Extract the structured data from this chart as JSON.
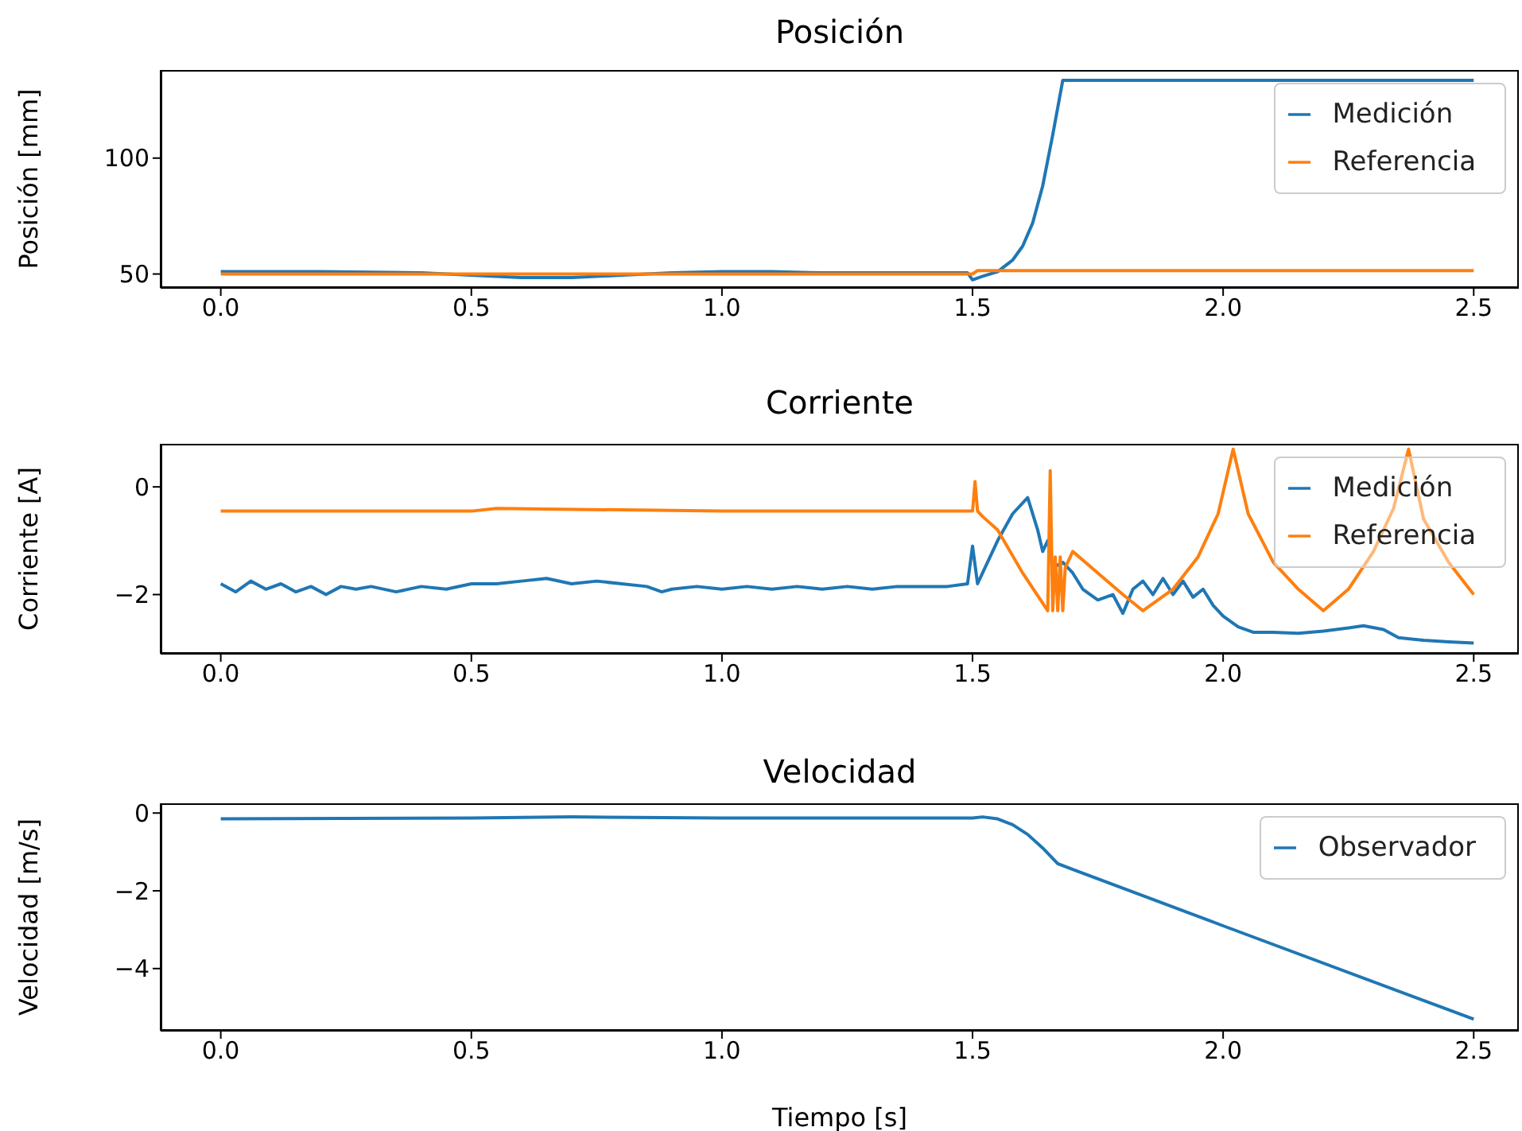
{
  "chart_data": [
    {
      "type": "line",
      "title": "Posición",
      "ylabel": "Posición [mm]",
      "legend": "top right",
      "xlim": [
        -0.12,
        2.59
      ],
      "xticks": [
        {
          "value": 0,
          "label": "0.0"
        },
        {
          "value": 0.5,
          "label": "0.5"
        },
        {
          "value": 1,
          "label": "1.0"
        },
        {
          "value": 1.5,
          "label": "1.5"
        },
        {
          "value": 2,
          "label": "2.0"
        },
        {
          "value": 2.5,
          "label": "2.5"
        }
      ],
      "ylim": [
        44,
        138
      ],
      "yticks": [
        50,
        100
      ],
      "series": [
        {
          "name": "Medición",
          "color": "#1f77b4",
          "x": [
            0,
            0.2,
            0.4,
            0.5,
            0.6,
            0.7,
            0.8,
            0.9,
            1.0,
            1.1,
            1.2,
            1.3,
            1.4,
            1.49,
            1.5,
            1.52,
            1.55,
            1.58,
            1.6,
            1.62,
            1.64,
            1.66,
            1.68,
            2.0,
            2.5
          ],
          "values": [
            51,
            51,
            50.5,
            49.5,
            48.5,
            48.5,
            49.5,
            50.5,
            51,
            51,
            50.5,
            50.5,
            50.5,
            50.5,
            47.5,
            49,
            51,
            56,
            62,
            72,
            88,
            110,
            133.5,
            133.5,
            133.5
          ]
        },
        {
          "name": "Referencia",
          "color": "#ff7f0e",
          "x": [
            0,
            0.5,
            1.0,
            1.5,
            1.51,
            2.0,
            2.5
          ],
          "values": [
            50,
            50,
            50,
            50,
            51.5,
            51.5,
            51.5
          ]
        }
      ]
    },
    {
      "type": "line",
      "title": "Corriente",
      "ylabel": "Corriente [A]",
      "legend": "top right",
      "xlim": [
        -0.12,
        2.59
      ],
      "xticks": [
        {
          "value": 0,
          "label": "0.0"
        },
        {
          "value": 0.5,
          "label": "0.5"
        },
        {
          "value": 1,
          "label": "1.0"
        },
        {
          "value": 1.5,
          "label": "1.5"
        },
        {
          "value": 2,
          "label": "2.0"
        },
        {
          "value": 2.5,
          "label": "2.5"
        }
      ],
      "ylim": [
        -3.1,
        0.8
      ],
      "yticks": [
        -2,
        0
      ],
      "series": [
        {
          "name": "Medición",
          "color": "#1f77b4",
          "x": [
            0,
            0.03,
            0.06,
            0.09,
            0.12,
            0.15,
            0.18,
            0.21,
            0.24,
            0.27,
            0.3,
            0.35,
            0.4,
            0.45,
            0.5,
            0.55,
            0.6,
            0.65,
            0.7,
            0.75,
            0.8,
            0.85,
            0.88,
            0.9,
            0.95,
            1.0,
            1.05,
            1.1,
            1.15,
            1.2,
            1.25,
            1.3,
            1.35,
            1.4,
            1.45,
            1.49,
            1.5,
            1.51,
            1.52,
            1.55,
            1.58,
            1.61,
            1.63,
            1.64,
            1.65,
            1.66,
            1.68,
            1.7,
            1.72,
            1.75,
            1.78,
            1.8,
            1.82,
            1.84,
            1.86,
            1.88,
            1.9,
            1.92,
            1.94,
            1.96,
            1.98,
            2.0,
            2.03,
            2.06,
            2.1,
            2.15,
            2.2,
            2.25,
            2.28,
            2.32,
            2.35,
            2.4,
            2.45,
            2.5
          ],
          "values": [
            -1.8,
            -1.95,
            -1.75,
            -1.9,
            -1.8,
            -1.95,
            -1.85,
            -2.0,
            -1.85,
            -1.9,
            -1.85,
            -1.95,
            -1.85,
            -1.9,
            -1.8,
            -1.8,
            -1.75,
            -1.7,
            -1.8,
            -1.75,
            -1.8,
            -1.85,
            -1.95,
            -1.9,
            -1.85,
            -1.9,
            -1.85,
            -1.9,
            -1.85,
            -1.9,
            -1.85,
            -1.9,
            -1.85,
            -1.85,
            -1.85,
            -1.8,
            -1.1,
            -1.8,
            -1.6,
            -1.0,
            -0.5,
            -0.2,
            -0.8,
            -1.2,
            -1.0,
            -1.5,
            -1.4,
            -1.6,
            -1.9,
            -2.1,
            -2.0,
            -2.35,
            -1.9,
            -1.75,
            -2.0,
            -1.7,
            -2.0,
            -1.75,
            -2.05,
            -1.9,
            -2.2,
            -2.4,
            -2.6,
            -2.7,
            -2.7,
            -2.72,
            -2.68,
            -2.62,
            -2.58,
            -2.65,
            -2.8,
            -2.85,
            -2.88,
            -2.9
          ]
        },
        {
          "name": "Referencia",
          "color": "#ff7f0e",
          "x": [
            0,
            0.5,
            0.55,
            1.0,
            1.5,
            1.505,
            1.51,
            1.52,
            1.55,
            1.6,
            1.65,
            1.655,
            1.66,
            1.665,
            1.67,
            1.675,
            1.68,
            1.685,
            1.7,
            1.75,
            1.8,
            1.84,
            1.9,
            1.95,
            1.99,
            2.02,
            2.05,
            2.1,
            2.15,
            2.2,
            2.25,
            2.3,
            2.34,
            2.37,
            2.4,
            2.45,
            2.5
          ],
          "values": [
            -0.45,
            -0.45,
            -0.4,
            -0.45,
            -0.45,
            0.1,
            -0.45,
            -0.55,
            -0.8,
            -1.6,
            -2.3,
            0.3,
            -2.3,
            -1.3,
            -2.3,
            -1.3,
            -2.3,
            -1.5,
            -1.2,
            -1.6,
            -2.0,
            -2.3,
            -1.9,
            -1.3,
            -0.5,
            0.7,
            -0.5,
            -1.4,
            -1.9,
            -2.3,
            -1.9,
            -1.2,
            -0.4,
            0.7,
            -0.6,
            -1.4,
            -2.0
          ]
        }
      ]
    },
    {
      "type": "line",
      "title": "Velocidad",
      "ylabel": "Velocidad [m/s]",
      "xlabel": "Tiempo [s]",
      "legend": "top right",
      "xlim": [
        -0.12,
        2.59
      ],
      "xticks": [
        {
          "value": 0,
          "label": "0.0"
        },
        {
          "value": 0.5,
          "label": "0.5"
        },
        {
          "value": 1,
          "label": "1.0"
        },
        {
          "value": 1.5,
          "label": "1.5"
        },
        {
          "value": 2,
          "label": "2.0"
        },
        {
          "value": 2.5,
          "label": "2.5"
        }
      ],
      "ylim": [
        -5.6,
        0.25
      ],
      "yticks": [
        -4,
        -2,
        0
      ],
      "series": [
        {
          "name": "Observador",
          "color": "#1f77b4",
          "x": [
            0,
            0.5,
            0.7,
            1.0,
            1.5,
            1.52,
            1.55,
            1.58,
            1.61,
            1.64,
            1.67,
            1.7,
            2.0,
            2.5
          ],
          "values": [
            -0.15,
            -0.13,
            -0.1,
            -0.13,
            -0.13,
            -0.1,
            -0.15,
            -0.3,
            -0.55,
            -0.9,
            -1.3,
            -1.45,
            -2.9,
            -5.3
          ]
        }
      ]
    }
  ]
}
